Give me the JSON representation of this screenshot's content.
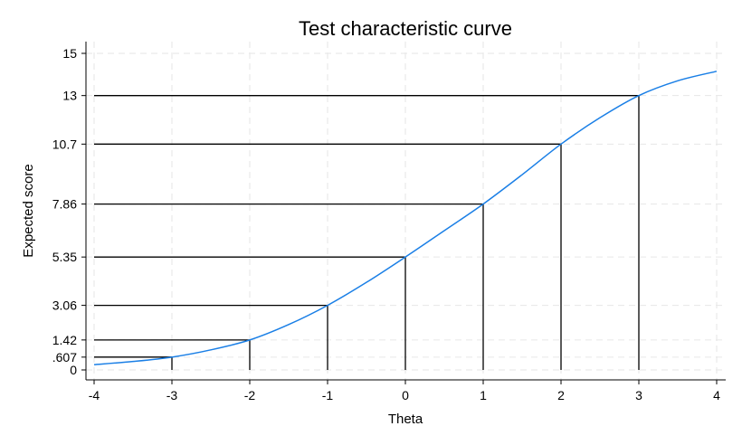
{
  "chart_data": {
    "type": "line",
    "title": "Test characteristic curve",
    "xlabel": "Theta",
    "ylabel": "Expected score",
    "xlim": [
      -4,
      4
    ],
    "ylim": [
      0,
      15
    ],
    "x_ticks": [
      -4,
      -3,
      -2,
      -1,
      0,
      1,
      2,
      3,
      4
    ],
    "x_tick_labels": [
      "-4",
      "-3",
      "-2",
      "-1",
      "0",
      "1",
      "2",
      "3",
      "4"
    ],
    "y_ticks": [
      0,
      0.607,
      1.42,
      3.06,
      5.35,
      7.86,
      10.7,
      13,
      15
    ],
    "y_tick_labels": [
      "0",
      ".607",
      "1.42",
      "3.06",
      "5.35",
      "7.86",
      "10.7",
      "13",
      "15"
    ],
    "grid": true,
    "legend": "none",
    "series": [
      {
        "x": [
          -4,
          -3.5,
          -3,
          -2.5,
          -2,
          -1.5,
          -1,
          -0.5,
          0,
          0.5,
          1,
          1.5,
          2,
          2.5,
          3,
          3.5,
          4
        ],
        "y": [
          0.25,
          0.4,
          0.607,
          0.95,
          1.42,
          2.15,
          3.06,
          4.15,
          5.35,
          6.6,
          7.86,
          9.25,
          10.7,
          11.95,
          13,
          13.7,
          14.15
        ]
      }
    ],
    "reference_points": [
      {
        "theta": -3,
        "score": 0.607
      },
      {
        "theta": -2,
        "score": 1.42
      },
      {
        "theta": -1,
        "score": 3.06
      },
      {
        "theta": 0,
        "score": 5.35
      },
      {
        "theta": 1,
        "score": 7.86
      },
      {
        "theta": 2,
        "score": 10.7
      },
      {
        "theta": 3,
        "score": 13
      }
    ],
    "colors": {
      "curve": "#1a7fe6",
      "reference_lines": "#000000",
      "grid": "#e6e6e6"
    }
  }
}
